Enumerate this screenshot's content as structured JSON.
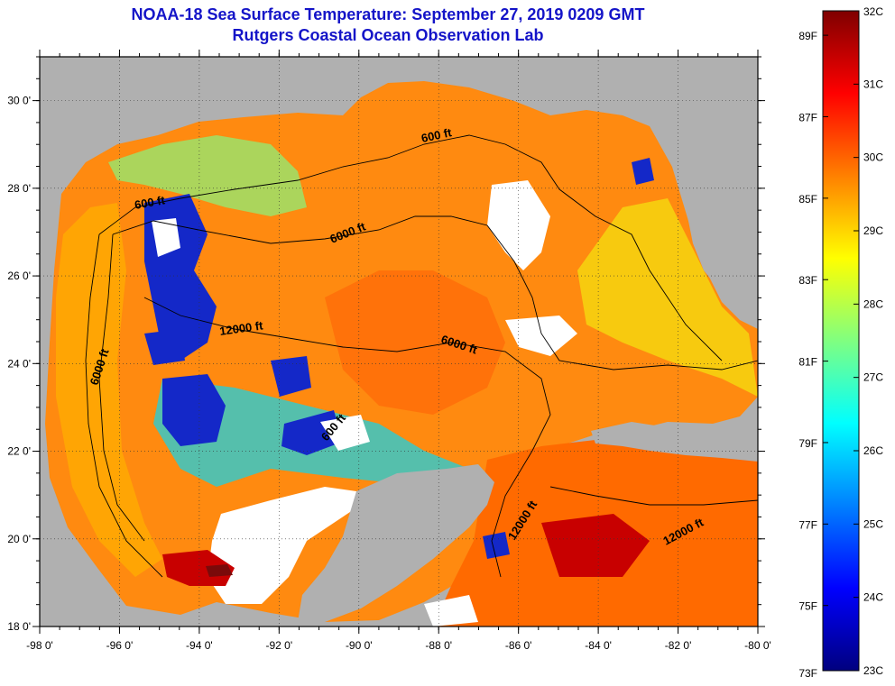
{
  "header": {
    "title": "NOAA-18 Sea Surface Temperature:  September 27, 2019 0209 GMT",
    "subtitle": "Rutgers Coastal Ocean Observation Lab"
  },
  "map": {
    "lat_labels": [
      "30 0'",
      "28 0'",
      "26 0'",
      "24 0'",
      "22 0'",
      "20 0'",
      "18 0'"
    ],
    "lon_labels": [
      "-98 0'",
      "-96 0'",
      "-94 0'",
      "-92 0'",
      "-90 0'",
      "-88 0'",
      "-86 0'",
      "-84 0'",
      "-82 0'",
      "-80 0'"
    ],
    "contours": [
      {
        "name": "contour-label-600-ft-north",
        "text": "600 ft"
      },
      {
        "name": "contour-label-600-ft-west",
        "text": "600 ft"
      },
      {
        "name": "contour-label-600-ft-yucatan",
        "text": "600 ft"
      },
      {
        "name": "contour-label-6000-ft-central",
        "text": "6000 ft"
      },
      {
        "name": "contour-label-6000-ft-west",
        "text": "6000 ft"
      },
      {
        "name": "contour-label-6000-ft-east",
        "text": "6000 ft"
      },
      {
        "name": "contour-label-12000-ft-central",
        "text": "12000 ft"
      },
      {
        "name": "contour-label-12000-ft-yucatan",
        "text": "12000 ft"
      },
      {
        "name": "contour-label-12000-ft-caribbean",
        "text": "12000 ft"
      }
    ]
  },
  "colorbar": {
    "fahrenheit_labels": [
      "89F",
      "87F",
      "85F",
      "83F",
      "81F",
      "79F",
      "77F",
      "75F",
      "73F"
    ],
    "celsius_labels": [
      "32C",
      "31C",
      "30C",
      "29C",
      "28C",
      "27C",
      "26C",
      "25C",
      "24C",
      "23C"
    ],
    "min_c": 23,
    "max_c": 32,
    "colors": [
      "#00007f",
      "#0000ff",
      "#0080ff",
      "#00ffff",
      "#80ff80",
      "#ffff00",
      "#ff8000",
      "#ff0000",
      "#7f0000"
    ]
  }
}
